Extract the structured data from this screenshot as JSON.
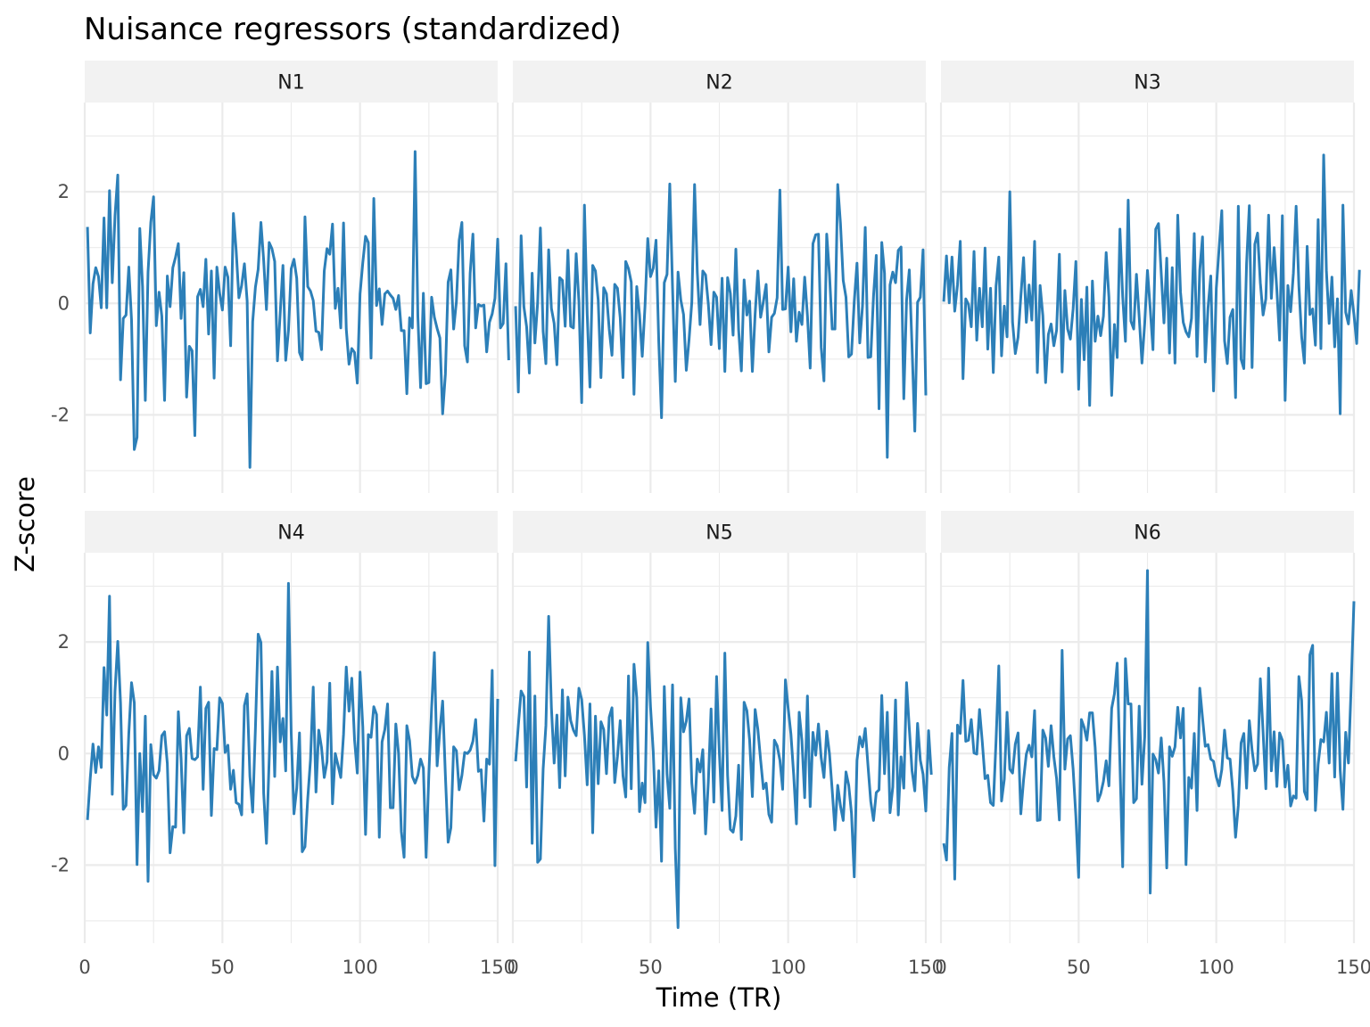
{
  "chart_data": {
    "type": "line",
    "title": "Nuisance regressors (standardized)",
    "xlabel": "Time (TR)",
    "ylabel": "Z-score",
    "xlim": [
      0,
      150
    ],
    "ylim": [
      -3.4,
      3.6
    ],
    "x_ticks": [
      0,
      50,
      100,
      150
    ],
    "y_ticks": [
      -2,
      0,
      2
    ],
    "x_tick_labels": [
      "0",
      "50",
      "100",
      "150"
    ],
    "y_tick_labels": [
      "-2",
      "0",
      "2"
    ],
    "grid": true,
    "legend": "none",
    "facet_layout": {
      "rows": 2,
      "cols": 3
    },
    "line_color": "#2c7fb8",
    "panels": [
      {
        "label": "N1",
        "x_start": 1,
        "values": [
          1.37,
          -0.53,
          0.35,
          0.64,
          0.48,
          -0.08,
          1.53,
          -0.08,
          2.02,
          0.37,
          1.57,
          2.3,
          -1.37,
          -0.27,
          -0.21,
          0.65,
          -0.3,
          -2.62,
          -2.4,
          1.34,
          0.3,
          -1.74,
          0.56,
          1.45,
          1.91,
          -0.4,
          0.2,
          -0.23,
          -1.74,
          0.49,
          -0.06,
          0.64,
          0.83,
          1.07,
          -0.27,
          0.55,
          -1.68,
          -0.77,
          -0.85,
          -2.37,
          0.12,
          0.25,
          -0.06,
          0.79,
          -0.55,
          0.58,
          -1.34,
          0.65,
          0.18,
          -0.12,
          0.65,
          0.47,
          -0.76,
          1.61,
          0.95,
          0.1,
          0.32,
          0.71,
          0.04,
          -2.94,
          -0.33,
          0.29,
          0.61,
          1.45,
          0.77,
          -0.11,
          1.09,
          0.98,
          0.75,
          -1.03,
          -0.18,
          0.68,
          -1.02,
          -0.49,
          0.62,
          0.79,
          0.45,
          -0.88,
          -1.01,
          1.55,
          0.3,
          0.22,
          0.05,
          -0.5,
          -0.52,
          -0.83,
          0.58,
          0.98,
          0.88,
          1.42,
          -0.09,
          0.27,
          -0.44,
          1.44,
          -0.46,
          -1.09,
          -0.81,
          -0.88,
          -1.43,
          0.17,
          0.73,
          1.2,
          1.09,
          -0.98,
          1.88,
          -0.04,
          0.26,
          -0.38,
          0.17,
          0.22,
          0.15,
          0.09,
          -0.11,
          0.14,
          -0.49,
          -0.49,
          -1.62,
          -0.26,
          -0.44,
          2.72,
          -0.23,
          -1.51,
          0.18,
          -1.44,
          -1.42,
          0.11,
          -0.25,
          -0.45,
          -0.62,
          -1.98,
          -1.27,
          0.38,
          0.6,
          -0.46,
          0.03,
          1.13,
          1.45,
          -0.76,
          -1.05,
          0.54,
          1.24,
          -0.44,
          -0.02,
          -0.05,
          -0.03,
          -0.87,
          -0.34,
          -0.19,
          0.09,
          1.15,
          -0.44,
          -0.36,
          0.71,
          -1.02
        ]
      },
      {
        "label": "N2",
        "x_start": 1,
        "values": [
          -0.05,
          -1.59,
          1.21,
          -0.06,
          -0.42,
          -1.25,
          0.54,
          -0.71,
          0.01,
          1.35,
          -0.5,
          -1.08,
          0.96,
          -0.09,
          -0.36,
          -1.1,
          0.46,
          0.41,
          -0.41,
          0.95,
          -0.41,
          -0.44,
          0.89,
          0.03,
          -1.78,
          1.76,
          -0.19,
          -1.5,
          0.68,
          0.58,
          0.06,
          -1.33,
          0.28,
          0.17,
          -0.46,
          -0.93,
          0.34,
          0.27,
          -0.26,
          -1.33,
          0.75,
          0.62,
          0.38,
          -1.63,
          0.3,
          -0.2,
          -0.95,
          -0.05,
          1.16,
          0.48,
          0.63,
          1.13,
          -0.69,
          -2.05,
          0.37,
          0.52,
          2.14,
          0.28,
          -1.4,
          0.56,
          0.06,
          -0.2,
          -1.2,
          -0.65,
          0.02,
          2.13,
          0.55,
          -0.38,
          0.58,
          0.51,
          -0.01,
          -0.74,
          0.2,
          0.11,
          -0.81,
          0.45,
          -1.22,
          0.46,
          0.18,
          -0.57,
          0.97,
          -0.47,
          -1.21,
          0.42,
          -0.21,
          0.04,
          -1.22,
          -0.19,
          0.58,
          -0.25,
          0.03,
          0.34,
          -0.87,
          -0.25,
          -0.18,
          0.1,
          2.03,
          -0.11,
          -0.1,
          0.65,
          -0.51,
          0.44,
          -0.68,
          -0.16,
          -0.38,
          0.47,
          -0.22,
          -1.16,
          1.07,
          1.23,
          1.24,
          -0.79,
          -1.39,
          1.24,
          0.53,
          -0.46,
          -0.46,
          2.13,
          1.43,
          0.41,
          0.11,
          -0.96,
          -0.91,
          0.03,
          0.72,
          -0.71,
          -0.05,
          1.36,
          -0.97,
          -0.96,
          0.13,
          0.86,
          -1.89,
          1.09,
          0.54,
          -2.76,
          0.33,
          0.56,
          0.37,
          0.95,
          1.01,
          -1.71,
          0.05,
          0.6,
          -0.79,
          -2.29,
          0.02,
          0.11,
          0.96,
          -1.65
        ]
      },
      {
        "label": "N3",
        "x_start": 1,
        "values": [
          0.03,
          0.85,
          0.01,
          0.83,
          -0.14,
          0.33,
          1.11,
          -1.35,
          0.08,
          -0.02,
          -0.42,
          0.93,
          -0.66,
          0.27,
          -0.42,
          0.99,
          -0.82,
          0.27,
          -1.24,
          0.31,
          0.83,
          -0.94,
          -0.05,
          -0.6,
          2.0,
          -0.34,
          -0.9,
          -0.61,
          0.12,
          0.82,
          -0.34,
          0.33,
          -0.3,
          1.11,
          -1.24,
          0.32,
          -0.22,
          -1.42,
          -0.56,
          -0.37,
          -0.76,
          -0.48,
          0.88,
          -1.23,
          0.23,
          -0.46,
          -0.64,
          -0.1,
          0.75,
          -1.54,
          0.07,
          -1.01,
          0.29,
          -1.83,
          0.4,
          -0.68,
          -0.23,
          -0.58,
          -0.23,
          0.91,
          0.11,
          -1.65,
          -0.38,
          -0.97,
          1.33,
          0.12,
          -0.68,
          1.85,
          -0.32,
          -0.46,
          0.52,
          -0.25,
          -1.07,
          -0.36,
          0.59,
          -0.09,
          -0.83,
          1.33,
          1.43,
          0.54,
          -0.35,
          0.81,
          -0.89,
          0.64,
          -1.07,
          1.58,
          0.2,
          -0.34,
          -0.51,
          -0.6,
          -0.27,
          1.25,
          -0.95,
          0.6,
          1.19,
          -1.05,
          -0.08,
          0.49,
          -1.57,
          0.27,
          0.97,
          1.66,
          -0.67,
          -1.08,
          -0.25,
          -0.11,
          -1.69,
          1.74,
          -1.0,
          -1.17,
          0.71,
          1.75,
          -1.15,
          1.06,
          1.26,
          0.37,
          -0.21,
          0.08,
          1.58,
          0.09,
          1.0,
          0.24,
          -0.66,
          1.57,
          -1.74,
          0.32,
          -0.15,
          0.54,
          1.74,
          0.31,
          -0.6,
          -1.07,
          1.02,
          -0.2,
          -0.1,
          -0.75,
          1.5,
          -0.81,
          2.66,
          0.58,
          -0.36,
          0.47,
          -0.78,
          0.08,
          -1.98,
          1.76,
          -0.16,
          -0.37,
          0.23,
          -0.2,
          -0.72,
          0.6
        ]
      },
      {
        "label": "N4",
        "x_start": 1,
        "values": [
          -1.19,
          -0.45,
          0.17,
          -0.34,
          0.12,
          -0.25,
          1.54,
          0.69,
          2.82,
          -0.73,
          1.12,
          2.01,
          0.91,
          -1.0,
          -0.93,
          0.35,
          1.27,
          0.91,
          -1.99,
          0.0,
          -1.04,
          0.67,
          -2.29,
          0.16,
          -0.38,
          -0.44,
          -0.31,
          0.32,
          0.39,
          -0.18,
          -1.78,
          -1.31,
          -1.32,
          0.75,
          -0.09,
          -1.42,
          0.32,
          0.45,
          -0.09,
          -0.11,
          -0.06,
          1.19,
          -0.64,
          0.81,
          0.92,
          -1.11,
          0.09,
          0.07,
          1.0,
          0.9,
          0.02,
          0.15,
          -0.64,
          -0.3,
          -0.88,
          -0.91,
          -1.1,
          0.86,
          1.07,
          -0.41,
          -1.05,
          0.45,
          2.14,
          1.99,
          -0.71,
          -1.61,
          -0.1,
          1.47,
          -0.41,
          1.55,
          0.21,
          0.63,
          -0.31,
          3.05,
          0.36,
          -1.08,
          -0.62,
          0.37,
          -1.76,
          -1.67,
          -0.81,
          -0.11,
          1.19,
          -0.69,
          0.42,
          0.11,
          -0.43,
          -0.15,
          1.26,
          -0.9,
          0.0,
          -0.21,
          -0.43,
          0.34,
          1.55,
          0.76,
          1.35,
          0.25,
          -0.35,
          1.46,
          0.48,
          -1.45,
          0.34,
          0.29,
          0.84,
          0.7,
          -1.5,
          0.21,
          0.43,
          0.89,
          -0.97,
          -0.97,
          0.53,
          0.0,
          -1.4,
          -1.86,
          0.5,
          0.23,
          -0.41,
          -0.53,
          -0.39,
          -0.1,
          -0.26,
          -1.86,
          -0.36,
          0.82,
          1.81,
          -0.22,
          0.42,
          0.94,
          -0.39,
          -1.59,
          -1.33,
          0.12,
          0.05,
          -0.65,
          -0.39,
          0.02,
          -0.0,
          0.06,
          0.22,
          0.61,
          -0.32,
          -0.29,
          -1.21,
          -0.1,
          -0.19,
          1.49,
          -2.01,
          0.98
        ]
      },
      {
        "label": "N5",
        "x_start": 1,
        "values": [
          -0.14,
          0.51,
          1.12,
          1.02,
          -0.6,
          1.82,
          -1.61,
          1.03,
          -1.95,
          -1.89,
          -0.28,
          0.5,
          2.46,
          0.83,
          -0.17,
          0.69,
          -0.61,
          1.14,
          -0.4,
          1.01,
          0.59,
          0.42,
          0.32,
          1.17,
          0.97,
          0.33,
          -0.56,
          0.89,
          -1.42,
          0.67,
          -0.54,
          0.57,
          0.43,
          -0.36,
          0.65,
          0.82,
          -0.52,
          -0.05,
          0.59,
          -0.4,
          -0.78,
          1.39,
          -0.63,
          1.6,
          1.0,
          -1.04,
          -0.53,
          -0.88,
          1.99,
          0.84,
          0.03,
          -1.32,
          -0.31,
          -1.93,
          1.2,
          -0.37,
          -0.98,
          1.23,
          -1.7,
          -3.12,
          1.0,
          0.39,
          0.58,
          0.98,
          -0.53,
          -1.07,
          -0.1,
          -0.33,
          0.07,
          -1.44,
          -0.51,
          0.8,
          -0.87,
          1.38,
          0.02,
          -1.02,
          1.8,
          -0.39,
          -1.36,
          -1.41,
          -1.12,
          -0.21,
          -1.54,
          0.92,
          0.77,
          0.24,
          -0.77,
          0.79,
          0.43,
          -0.12,
          -0.63,
          -0.53,
          -1.09,
          -1.23,
          0.24,
          0.14,
          -0.12,
          -0.64,
          1.32,
          0.81,
          0.35,
          -0.38,
          -1.26,
          0.74,
          0.23,
          -0.79,
          1.03,
          -0.95,
          0.38,
          -0.03,
          0.53,
          -0.08,
          -0.43,
          0.4,
          0.0,
          -0.66,
          -1.37,
          -0.57,
          -0.94,
          -1.2,
          -0.33,
          -0.57,
          -1.07,
          -2.21,
          -0.12,
          0.3,
          0.12,
          0.45,
          -0.22,
          -0.86,
          -1.2,
          -0.7,
          -0.65,
          1.04,
          -0.36,
          0.74,
          -1.06,
          -0.6,
          0.96,
          -1.1,
          -0.06,
          -0.62,
          1.27,
          0.45,
          -0.31,
          -0.67,
          0.54,
          -0.12,
          -0.37,
          -1.03,
          0.41,
          -0.38
        ]
      },
      {
        "label": "N6",
        "x_start": 1,
        "values": [
          -1.61,
          -1.91,
          -0.25,
          0.36,
          -2.25,
          0.51,
          0.36,
          1.31,
          0.22,
          0.24,
          0.61,
          0.01,
          -0.01,
          0.79,
          0.21,
          -0.45,
          -0.39,
          -0.88,
          -0.93,
          0.23,
          1.57,
          -0.85,
          -0.46,
          0.74,
          -0.28,
          -0.35,
          0.17,
          0.37,
          -1.08,
          -0.47,
          -0.01,
          0.15,
          -0.06,
          0.77,
          -1.2,
          -1.19,
          0.42,
          0.28,
          -0.23,
          0.5,
          -0.06,
          -0.45,
          -1.19,
          1.85,
          -0.28,
          0.26,
          0.32,
          -0.28,
          -1.13,
          -2.22,
          0.61,
          0.47,
          0.24,
          0.73,
          0.73,
          0.11,
          -0.85,
          -0.72,
          -0.5,
          -0.13,
          -0.58,
          0.81,
          1.07,
          1.62,
          -0.17,
          -2.03,
          1.7,
          0.89,
          0.89,
          -0.88,
          -0.81,
          0.85,
          -0.55,
          0.3,
          3.28,
          -2.5,
          -0.01,
          -0.11,
          -0.35,
          0.28,
          -0.51,
          -2.05,
          0.12,
          -0.05,
          0.12,
          0.83,
          0.28,
          0.81,
          -1.99,
          -0.43,
          -0.62,
          0.36,
          -1.02,
          1.17,
          0.64,
          0.13,
          0.16,
          -0.1,
          -0.14,
          -0.42,
          -0.58,
          -0.29,
          0.42,
          -0.08,
          -0.1,
          -0.67,
          -1.5,
          -0.93,
          0.19,
          0.36,
          -0.62,
          0.59,
          0.06,
          -0.31,
          -0.19,
          1.34,
          0.38,
          -0.63,
          1.53,
          -0.31,
          0.39,
          -0.59,
          0.37,
          0.24,
          -0.6,
          -0.21,
          -0.94,
          -0.76,
          -0.8,
          1.38,
          0.95,
          -0.68,
          -0.82,
          1.77,
          1.94,
          -1.02,
          -0.19,
          0.25,
          0.21,
          0.74,
          -0.17,
          1.43,
          -0.42,
          1.44,
          -0.3,
          -1.0,
          0.38,
          -0.17,
          1.22,
          2.73
        ]
      }
    ]
  }
}
